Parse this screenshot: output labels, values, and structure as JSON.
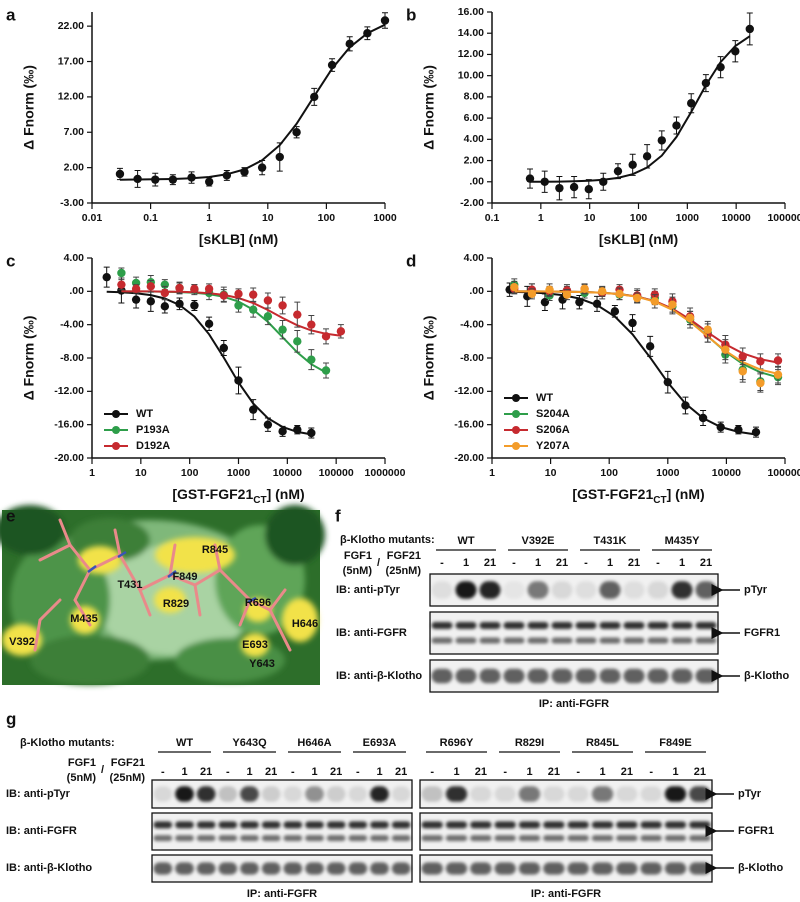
{
  "chart_data": [
    {
      "type": "scatter",
      "panel": "a",
      "y_label": "Δ Fnorm (‰)",
      "x_label_parts": [
        "[sKLB] (nM)"
      ],
      "log_x": true,
      "xlim": [
        0.01,
        1000
      ],
      "xticks": [
        0.01,
        0.1,
        1,
        10,
        100,
        1000
      ],
      "ylim": [
        -3,
        24
      ],
      "yticks": [
        {
          "value": -3,
          "label": "-3.00"
        },
        {
          "value": 2,
          "label": "2.00"
        },
        {
          "value": 7,
          "label": "7.00"
        },
        {
          "value": 12,
          "label": "12.00"
        },
        {
          "value": 17,
          "label": "17.00"
        },
        {
          "value": 22,
          "label": "22.00"
        }
      ],
      "series": [
        {
          "color": "#111111",
          "x": [
            0.03,
            0.06,
            0.12,
            0.24,
            0.5,
            1,
            2,
            4,
            8,
            16,
            31,
            62,
            125,
            250,
            500,
            1000
          ],
          "values": [
            1.1,
            0.4,
            0.3,
            0.3,
            0.6,
            0.0,
            0.9,
            1.4,
            2.0,
            3.5,
            7.0,
            12.0,
            16.5,
            19.5,
            21.0,
            22.8
          ],
          "errors": [
            0.8,
            1.2,
            0.9,
            0.7,
            0.8,
            0.6,
            0.7,
            0.6,
            1.0,
            2.0,
            0.8,
            1.2,
            0.9,
            1.0,
            0.9,
            1.1
          ],
          "fit": [
            0.3,
            0.32,
            0.35,
            0.39,
            0.49,
            0.68,
            1.05,
            1.75,
            3.03,
            5.18,
            8.2,
            12.1,
            16.0,
            19.0,
            21.0,
            22.2
          ]
        }
      ]
    },
    {
      "type": "scatter",
      "panel": "b",
      "y_label": "Δ Fnorm (‰)",
      "x_label_parts": [
        "[sKLB] (nM)"
      ],
      "log_x": true,
      "xlim": [
        0.1,
        100000
      ],
      "xticks": [
        0.1,
        1,
        10,
        100,
        1000,
        10000,
        100000
      ],
      "ylim": [
        -2,
        16
      ],
      "yticks": [
        {
          "value": -2,
          "label": "-2.00"
        },
        {
          "value": 0,
          "label": ".00"
        },
        {
          "value": 2,
          "label": "2.00"
        },
        {
          "value": 4,
          "label": "4.00"
        },
        {
          "value": 6,
          "label": "6.00"
        },
        {
          "value": 8,
          "label": "8.00"
        },
        {
          "value": 10,
          "label": "10.00"
        },
        {
          "value": 12,
          "label": "12.00"
        },
        {
          "value": 14,
          "label": "14.00"
        },
        {
          "value": 16,
          "label": "16.00"
        }
      ],
      "series": [
        {
          "color": "#111111",
          "x": [
            0.6,
            1.2,
            2.4,
            4.8,
            9.6,
            19,
            38,
            76,
            150,
            300,
            600,
            1200,
            2400,
            4800,
            9600,
            19000
          ],
          "values": [
            0.3,
            0.0,
            -0.6,
            -0.5,
            -0.7,
            0.0,
            1.0,
            1.6,
            2.4,
            3.9,
            5.3,
            7.4,
            9.3,
            10.8,
            12.3,
            14.4
          ],
          "errors": [
            0.9,
            1.0,
            1.1,
            1.0,
            0.9,
            0.8,
            0.7,
            1.0,
            1.1,
            0.9,
            0.8,
            0.9,
            0.8,
            1.0,
            1.0,
            1.5
          ],
          "fit": [
            0.0,
            0.01,
            0.02,
            0.05,
            0.09,
            0.19,
            0.37,
            0.71,
            1.35,
            2.47,
            4.23,
            6.58,
            9.11,
            11.28,
            12.8,
            13.72
          ]
        }
      ]
    },
    {
      "type": "scatter",
      "panel": "c",
      "y_label": "Δ Fnorm (‰)",
      "x_label_parts": [
        "[GST-FGF21",
        "CT",
        "] (nM)"
      ],
      "log_x": true,
      "legend": "lower left",
      "xlim": [
        1,
        1000000
      ],
      "xticks": [
        1,
        10,
        100,
        1000,
        10000,
        100000,
        1000000
      ],
      "ylim": [
        -20,
        4
      ],
      "yticks": [
        {
          "value": -20,
          "label": "-20.00"
        },
        {
          "value": -16,
          "label": "-16.00"
        },
        {
          "value": -12,
          "label": "-12.00"
        },
        {
          "value": -8,
          "label": "-8.00"
        },
        {
          "value": -4,
          "label": "-4.00"
        },
        {
          "value": 0,
          "label": ".00"
        },
        {
          "value": 4,
          "label": "4.00"
        }
      ],
      "series": [
        {
          "name": "WT",
          "color": "#111111",
          "x": [
            2,
            4,
            8,
            16,
            31,
            62,
            125,
            250,
            500,
            1000,
            2000,
            4000,
            8000,
            16000,
            31000
          ],
          "values": [
            1.7,
            0.1,
            -1.0,
            -1.2,
            -1.8,
            -1.5,
            -1.7,
            -3.9,
            -6.8,
            -10.7,
            -14.2,
            -16.0,
            -16.8,
            -16.6,
            -17.0
          ],
          "errors": [
            1.2,
            1.5,
            1.0,
            1.2,
            0.8,
            0.7,
            0.6,
            0.8,
            0.9,
            1.6,
            1.2,
            0.8,
            0.6,
            0.5,
            0.6
          ],
          "fit": [
            -0.06,
            -0.12,
            -0.23,
            -0.45,
            -0.86,
            -1.64,
            -3.02,
            -5.15,
            -7.95,
            -10.94,
            -13.46,
            -15.22,
            -16.28,
            -16.87,
            -17.17
          ]
        },
        {
          "name": "P193A",
          "color": "#2e9e4a",
          "x": [
            4,
            8,
            16,
            31,
            62,
            125,
            250,
            500,
            1000,
            2000,
            4000,
            8000,
            16000,
            31000,
            62000
          ],
          "values": [
            2.2,
            1.0,
            1.1,
            0.8,
            0.4,
            0.2,
            -0.2,
            -0.4,
            -1.7,
            -2.2,
            -3.0,
            -4.6,
            -6.0,
            -8.2,
            -9.5
          ],
          "errors": [
            0.6,
            0.7,
            0.8,
            0.6,
            0.7,
            0.6,
            0.8,
            0.9,
            0.8,
            0.9,
            1.0,
            1.1,
            1.3,
            1.2,
            0.9
          ],
          "fit": [
            0.0,
            -0.01,
            -0.02,
            -0.04,
            -0.09,
            -0.17,
            -0.33,
            -0.65,
            -1.22,
            -2.2,
            -3.67,
            -5.5,
            -7.33,
            -8.74,
            -9.74
          ]
        },
        {
          "name": "D192A",
          "color": "#c62a2f",
          "x": [
            4,
            8,
            16,
            31,
            62,
            125,
            250,
            500,
            1000,
            2000,
            4000,
            8000,
            16000,
            31000,
            62000,
            125000
          ],
          "values": [
            0.8,
            0.3,
            0.6,
            -0.2,
            0.4,
            0.3,
            0.3,
            -0.5,
            -0.3,
            -0.4,
            -1.1,
            -1.7,
            -2.8,
            -4.0,
            -5.4,
            -4.8
          ],
          "errors": [
            0.6,
            0.5,
            0.7,
            0.8,
            0.6,
            0.5,
            0.6,
            0.7,
            0.6,
            0.8,
            0.9,
            1.0,
            1.5,
            1.1,
            0.9,
            0.8
          ],
          "fit": [
            0.0,
            -0.01,
            -0.01,
            -0.03,
            -0.06,
            -0.11,
            -0.22,
            -0.43,
            -0.8,
            -1.4,
            -2.24,
            -3.2,
            -4.07,
            -4.69,
            -5.1,
            -5.34
          ]
        }
      ]
    },
    {
      "type": "scatter",
      "panel": "d",
      "y_label": "Δ Fnorm (‰)",
      "x_label_parts": [
        "[GST-FGF21",
        "CT",
        "] (nM)"
      ],
      "log_x": true,
      "legend": "lower left",
      "xlim": [
        1,
        100000
      ],
      "xticks": [
        1,
        10,
        100,
        1000,
        10000,
        100000
      ],
      "ylim": [
        -20,
        4
      ],
      "yticks": [
        {
          "value": -20,
          "label": "-20.00"
        },
        {
          "value": -16,
          "label": "-16.00"
        },
        {
          "value": -12,
          "label": "-12.00"
        },
        {
          "value": -8,
          "label": "-8.00"
        },
        {
          "value": -4,
          "label": "-4.00"
        },
        {
          "value": 0,
          "label": ".00"
        },
        {
          "value": 4,
          "label": "4.00"
        }
      ],
      "series": [
        {
          "name": "WT",
          "color": "#111111",
          "x": [
            2,
            4,
            8,
            16,
            31,
            62,
            125,
            250,
            500,
            1000,
            2000,
            4000,
            8000,
            16000,
            32000
          ],
          "values": [
            0.2,
            -0.6,
            -1.3,
            -1.0,
            -1.3,
            -1.5,
            -2.4,
            -3.8,
            -6.6,
            -10.9,
            -13.7,
            -15.2,
            -16.3,
            -16.6,
            -16.9
          ],
          "errors": [
            0.8,
            1.2,
            1.0,
            1.1,
            0.8,
            0.9,
            0.7,
            1.0,
            1.2,
            1.3,
            1.0,
            0.9,
            0.6,
            0.5,
            0.6
          ],
          "fit": [
            -0.06,
            -0.12,
            -0.23,
            -0.45,
            -0.86,
            -1.64,
            -3.02,
            -5.15,
            -7.95,
            -10.94,
            -13.46,
            -15.22,
            -16.28,
            -16.87,
            -17.18
          ]
        },
        {
          "name": "S204A",
          "color": "#2e9e4a",
          "x": [
            2.4,
            4.8,
            9.6,
            19,
            38,
            76,
            150,
            300,
            600,
            1200,
            2400,
            4800,
            9600,
            19000,
            38000,
            76000
          ],
          "values": [
            0.8,
            0.1,
            -0.5,
            0.1,
            -0.2,
            -0.1,
            -0.4,
            -0.6,
            -0.8,
            -1.8,
            -3.4,
            -5.0,
            -7.6,
            -9.4,
            -10.8,
            -10.3
          ],
          "errors": [
            0.7,
            0.8,
            0.6,
            0.7,
            0.6,
            0.5,
            0.6,
            0.7,
            0.8,
            0.9,
            1.0,
            1.1,
            1.0,
            1.2,
            1.1,
            0.9
          ],
          "fit": [
            -0.01,
            -0.01,
            -0.02,
            -0.04,
            -0.08,
            -0.16,
            -0.32,
            -0.62,
            -1.18,
            -2.13,
            -3.57,
            -5.39,
            -7.23,
            -8.71,
            -9.72,
            -10.32
          ]
        },
        {
          "name": "S206A",
          "color": "#c62a2f",
          "x": [
            2.4,
            4.8,
            9.6,
            19,
            38,
            76,
            150,
            300,
            600,
            1200,
            2400,
            4800,
            9600,
            19000,
            38000,
            76000
          ],
          "values": [
            0.3,
            0.2,
            0.0,
            0.1,
            0.3,
            -0.2,
            0.2,
            -0.5,
            -0.4,
            -1.2,
            -3.0,
            -5.2,
            -6.4,
            -7.8,
            -8.4,
            -8.3
          ],
          "errors": [
            0.6,
            0.7,
            0.6,
            0.5,
            0.6,
            0.7,
            0.6,
            0.8,
            0.7,
            0.9,
            1.0,
            0.9,
            1.1,
            1.0,
            0.9,
            0.8
          ],
          "fit": [
            -0.01,
            -0.01,
            -0.02,
            -0.04,
            -0.08,
            -0.17,
            -0.33,
            -0.63,
            -1.17,
            -2.08,
            -3.38,
            -4.91,
            -6.35,
            -7.43,
            -8.14,
            -8.55
          ]
        },
        {
          "name": "Y207A",
          "color": "#f39c2a",
          "x": [
            2.4,
            4.8,
            9.6,
            19,
            38,
            76,
            150,
            300,
            600,
            1200,
            2400,
            4800,
            9600,
            19000,
            38000,
            76000
          ],
          "values": [
            0.5,
            -0.3,
            0.2,
            -0.4,
            0.3,
            0.0,
            -0.3,
            -0.8,
            -1.2,
            -1.6,
            -3.2,
            -4.6,
            -7.0,
            -9.6,
            -11.0,
            -10.0
          ],
          "errors": [
            0.7,
            0.6,
            0.7,
            0.6,
            0.5,
            0.6,
            0.7,
            0.6,
            0.8,
            0.9,
            0.8,
            1.0,
            1.2,
            1.3,
            1.1,
            1.0
          ],
          "fit": [
            -0.01,
            -0.01,
            -0.02,
            -0.04,
            -0.09,
            -0.17,
            -0.34,
            -0.66,
            -1.24,
            -2.21,
            -3.65,
            -5.42,
            -7.15,
            -8.49,
            -9.39,
            -9.91
          ]
        }
      ]
    }
  ],
  "structure_panel": {
    "panel": "e",
    "labels": [
      "T431",
      "R845",
      "F849",
      "R829",
      "R696",
      "M435",
      "H646",
      "E693",
      "V392",
      "Y643"
    ]
  },
  "blot_f": {
    "panel": "f",
    "mutants_label": "β-Klotho mutants:",
    "groups": [
      "WT",
      "V392E",
      "T431K",
      "M435Y"
    ],
    "lanes": [
      "-",
      "1",
      "21"
    ],
    "treatment_label": [
      "FGF1",
      "(5nM)",
      "/",
      "FGF21",
      "(25nM)"
    ],
    "rows": [
      "IB: anti-pTyr",
      "IB: anti-FGFR",
      "IB: anti-β-Klotho"
    ],
    "markers": [
      "pTyr",
      "FGFR1",
      "β-Klotho"
    ],
    "ip_label": "IP: anti-FGFR"
  },
  "blot_g": {
    "panel": "g",
    "mutants_label": "β-Klotho mutants:",
    "groups": [
      [
        "WT",
        "Y643Q",
        "H646A",
        "E693A"
      ],
      [
        "R696Y",
        "R829I",
        "R845L",
        "F849E"
      ]
    ],
    "lanes": [
      "-",
      "1",
      "21"
    ],
    "treatment_label": [
      "FGF1",
      "(5nM)",
      "/",
      "FGF21",
      "(25nM)"
    ],
    "rows": [
      "IB: anti-pTyr",
      "IB: anti-FGFR",
      "IB: anti-β-Klotho"
    ],
    "markers": [
      "pTyr",
      "FGFR1",
      "β-Klotho"
    ],
    "ip_labels": [
      "IP: anti-FGFR",
      "IP: anti-FGFR"
    ]
  }
}
